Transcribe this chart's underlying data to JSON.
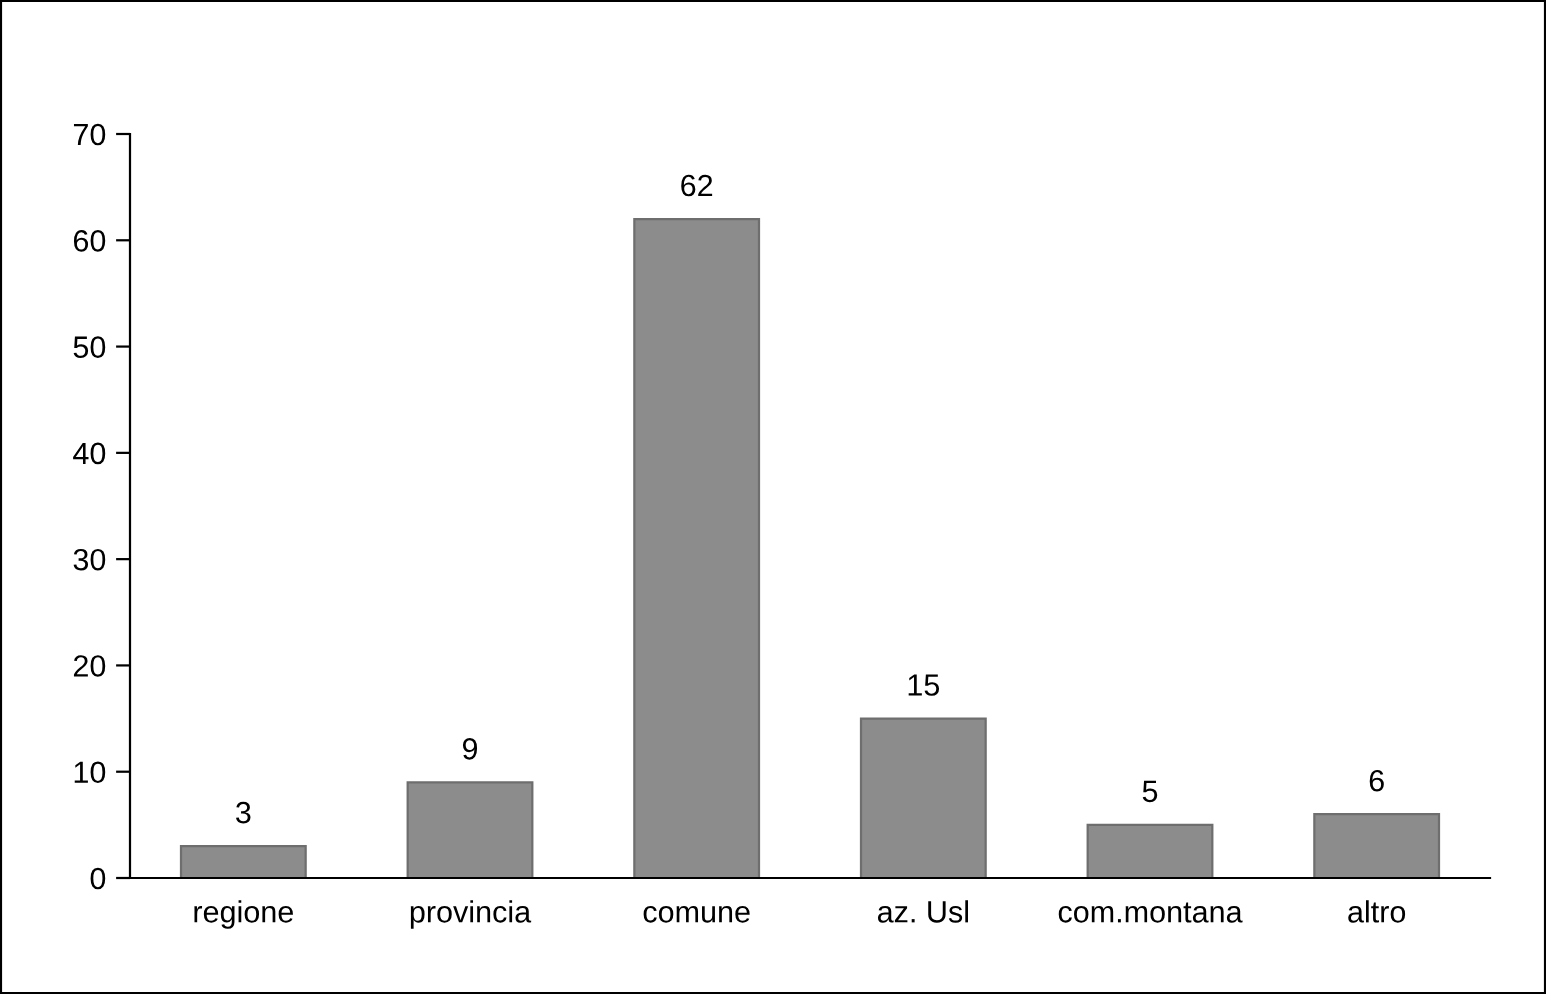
{
  "chart_data": {
    "type": "bar",
    "categories": [
      "regione",
      "provincia",
      "comune",
      "az. Usl",
      "com.montana",
      "altro"
    ],
    "values": [
      3,
      9,
      62,
      15,
      5,
      6
    ],
    "color": "#8c8c8c",
    "ylim": [
      0,
      70
    ],
    "yticks": [
      0,
      10,
      20,
      30,
      40,
      50,
      60,
      70
    ],
    "grid": false,
    "data_labels": true
  }
}
